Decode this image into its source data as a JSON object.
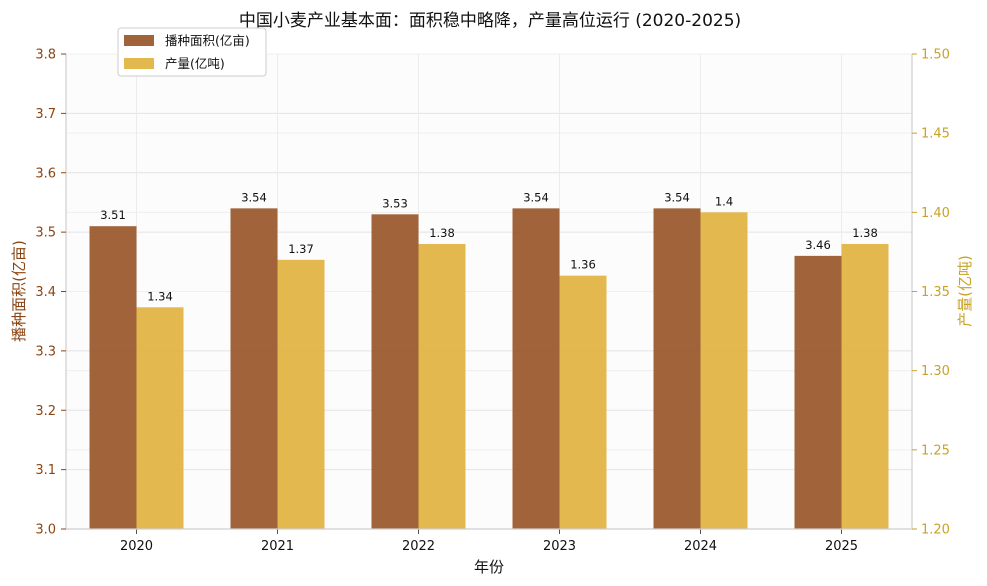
{
  "chart_data": {
    "type": "bar",
    "title": "中国小麦产业基本面：面积稳中略降，产量高位运行 (2020-2025)",
    "xlabel": "年份",
    "categories": [
      "2020",
      "2021",
      "2022",
      "2023",
      "2024",
      "2025"
    ],
    "series": [
      {
        "name": "播种面积(亿亩)",
        "axis": "left",
        "color": "#9c5b2f",
        "values": [
          3.51,
          3.54,
          3.53,
          3.54,
          3.54,
          3.46
        ],
        "labels": [
          "3.51",
          "3.54",
          "3.53",
          "3.54",
          "3.54",
          "3.46"
        ]
      },
      {
        "name": "产量(亿吨)",
        "axis": "right",
        "color": "#e0b446",
        "values": [
          1.34,
          1.37,
          1.38,
          1.36,
          1.4,
          1.38
        ],
        "labels": [
          "1.34",
          "1.37",
          "1.38",
          "1.36",
          "1.4",
          "1.38"
        ]
      }
    ],
    "y_left": {
      "label": "播种面积(亿亩)",
      "lim": [
        3.0,
        3.8
      ],
      "ticks": [
        3.0,
        3.1,
        3.2,
        3.3,
        3.4,
        3.5,
        3.6,
        3.7,
        3.8
      ],
      "tick_labels": [
        "3.0",
        "3.1",
        "3.2",
        "3.3",
        "3.4",
        "3.5",
        "3.6",
        "3.7",
        "3.8"
      ],
      "color": "#8b4513"
    },
    "y_right": {
      "label": "产量(亿吨)",
      "lim": [
        1.2,
        1.5
      ],
      "ticks": [
        1.2,
        1.25,
        1.3,
        1.35,
        1.4,
        1.45,
        1.5
      ],
      "tick_labels": [
        "1.20",
        "1.25",
        "1.30",
        "1.35",
        "1.40",
        "1.45",
        "1.50"
      ],
      "color": "#c9a227"
    },
    "grid": true,
    "legend_position": "top-left"
  }
}
